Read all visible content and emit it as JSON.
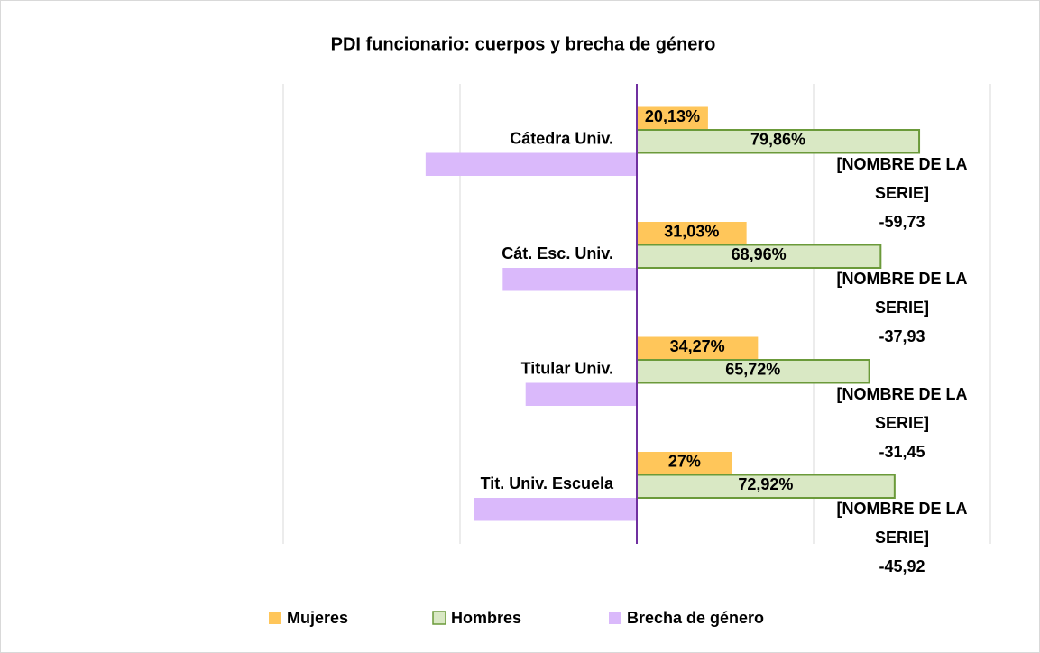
{
  "chart_data": {
    "type": "bar",
    "orientation": "horizontal",
    "title": "PDI funcionario: cuerpos y brecha de género",
    "categories": [
      "Cátedra Univ.",
      "Cát. Esc. Univ.",
      "Titular Univ.",
      "Tit. Univ. Escuela"
    ],
    "series": [
      {
        "name": "Mujeres",
        "color": "#ffc65a",
        "values": [
          20.13,
          31.03,
          34.27,
          27
        ],
        "value_labels": [
          "20,13%",
          "31,03%",
          "34,27%",
          "27%"
        ]
      },
      {
        "name": "Hombres",
        "color": "#d9e8c4",
        "edge_color": "#6b9a3a",
        "values": [
          79.86,
          68.96,
          65.72,
          72.92
        ],
        "value_labels": [
          "79,86%",
          "68,96%",
          "65,72%",
          "72,92%"
        ]
      },
      {
        "name": "Brecha de género",
        "color": "#dab9fb",
        "values": [
          -59.73,
          -37.93,
          -31.45,
          -45.92
        ],
        "value_labels": [
          "-59,73",
          "-37,93",
          "-31,45",
          "-45,92"
        ],
        "label_prefix": "[NOMBRE DE LA SERIE]"
      }
    ],
    "xlim": [
      -100,
      100
    ],
    "xticks": [
      -100,
      -50,
      0,
      50,
      100
    ],
    "grid": true,
    "legend": "bottom"
  }
}
